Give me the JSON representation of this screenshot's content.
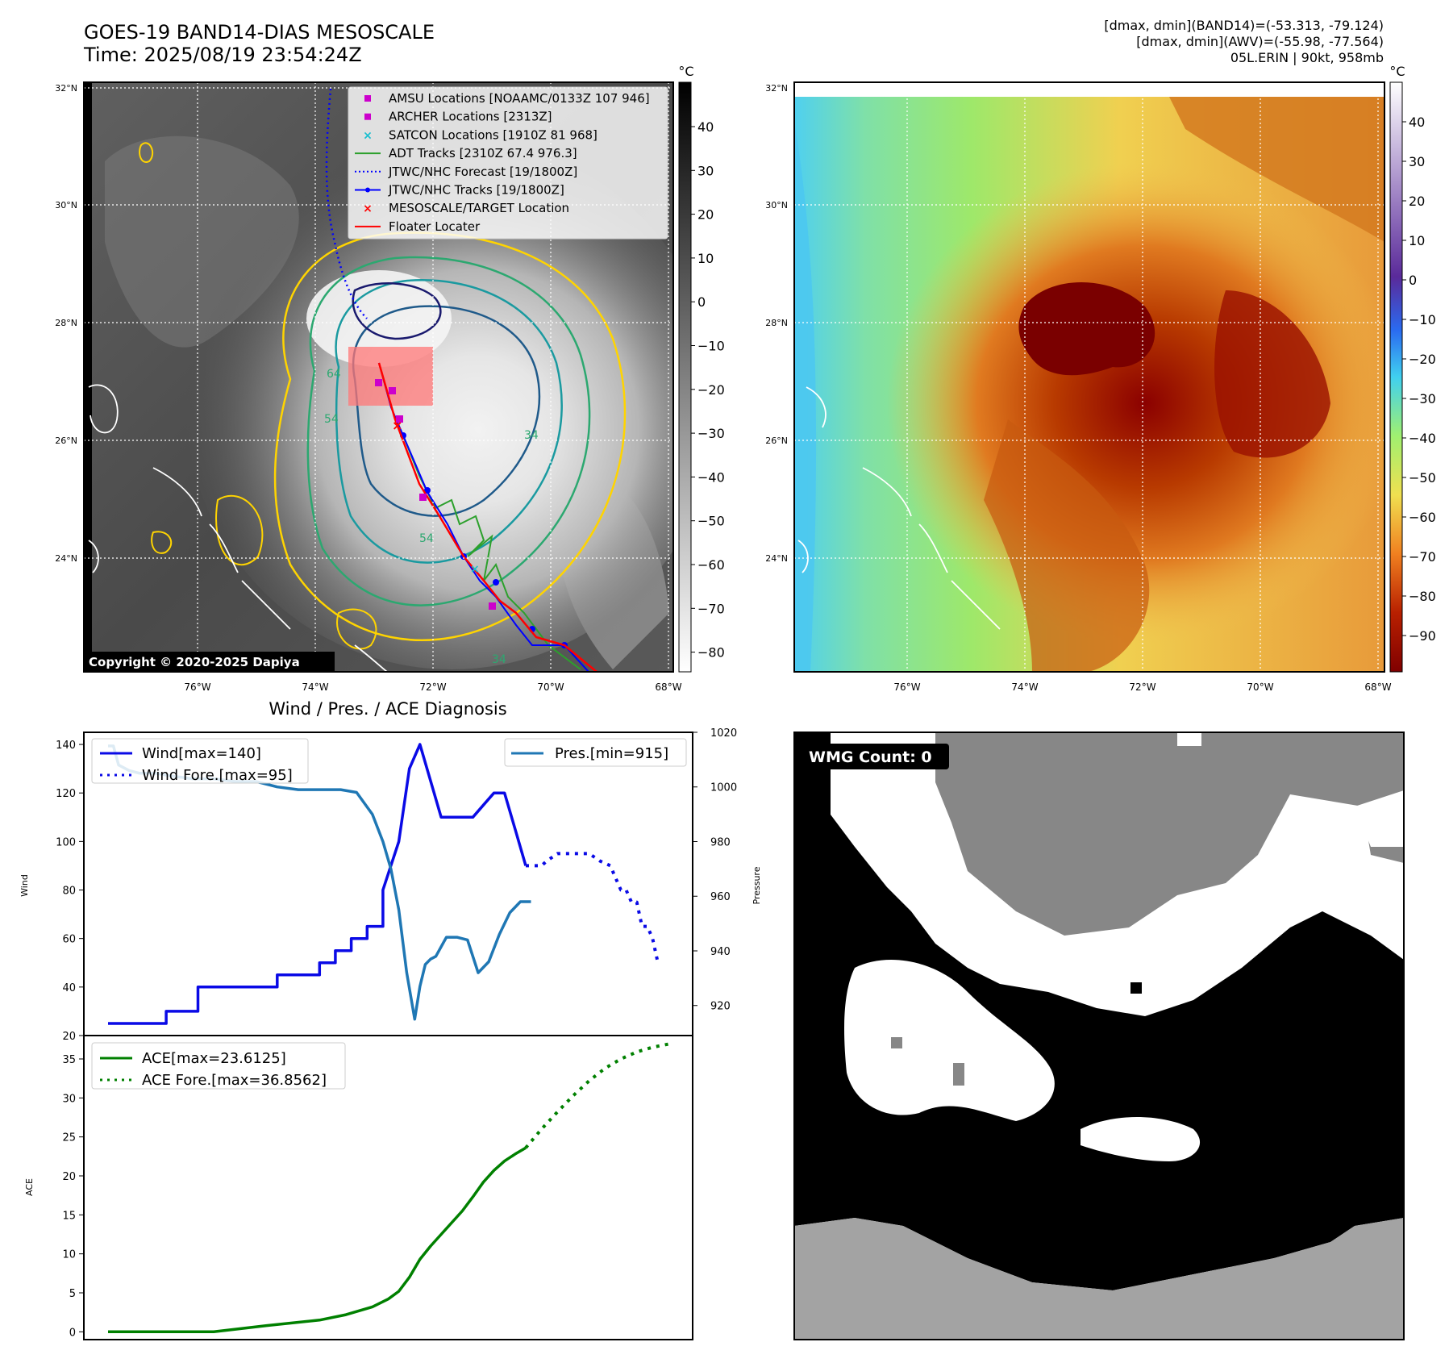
{
  "header": {
    "title_line1": "GOES-19 BAND14-DIAS MESOSCALE",
    "title_line2": "Time: 2025/08/19 23:54:24Z",
    "info_line1": "[dmax, dmin](BAND14)=(-53.313, -79.124)",
    "info_line2": "[dmax, dmin](AWV)=(-55.98, -77.564)",
    "info_line3": "05L.ERIN | 90kt, 958mb"
  },
  "colors": {
    "wind": "#0a0ae6",
    "pressure": "#1f77b4",
    "ace": "#008000",
    "track_red": "#ff0000",
    "jtwc_blue": "#0000ff",
    "adt_green": "#2ca02c",
    "magenta": "#cc00cc",
    "satcon_cyan": "#17becf",
    "wmg_gray_top": "#878787",
    "wmg_gray_bottom": "#a3a3a3"
  },
  "map_ir": {
    "lat_labels": [
      "32°N",
      "30°N",
      "28°N",
      "26°N",
      "24°N"
    ],
    "lon_labels": [
      "76°W",
      "74°W",
      "72°W",
      "70°W",
      "68°W"
    ],
    "colorbar_unit": "°C",
    "colorbar_ticks": [
      "40",
      "30",
      "20",
      "10",
      "0",
      "−10",
      "−20",
      "−30",
      "−40",
      "−50",
      "−60",
      "−70",
      "−80"
    ],
    "copyright": "Copyright © 2020-2025 Dapiya",
    "contour_labels": [
      "64",
      "54",
      "34",
      "54",
      "34"
    ],
    "legend": [
      {
        "label": "AMSU Locations [NOAAMC/0133Z 107 946]",
        "marker": "square",
        "color": "#cc00cc"
      },
      {
        "label": "ARCHER Locations [2313Z]",
        "marker": "square",
        "color": "#cc00cc"
      },
      {
        "label": "SATCON Locations [1910Z 81 968]",
        "marker": "x",
        "color": "#17becf"
      },
      {
        "label": "ADT Tracks [2310Z 67.4 976.3]",
        "marker": "line",
        "color": "#2ca02c"
      },
      {
        "label": "JTWC/NHC Forecast [19/1800Z]",
        "marker": "dotted",
        "color": "#0000ff"
      },
      {
        "label": "JTWC/NHC Tracks [19/1800Z]",
        "marker": "line-dot",
        "color": "#0000ff"
      },
      {
        "label": "MESOSCALE/TARGET Location",
        "marker": "x",
        "color": "#ff0000"
      },
      {
        "label": "Floater Locater",
        "marker": "line",
        "color": "#ff0000"
      }
    ]
  },
  "map_wv": {
    "lat_labels": [
      "32°N",
      "30°N",
      "28°N",
      "26°N",
      "24°N"
    ],
    "lon_labels": [
      "76°W",
      "74°W",
      "72°W",
      "70°W",
      "68°W"
    ],
    "colorbar_unit": "°C",
    "colorbar_ticks": [
      "40",
      "30",
      "20",
      "10",
      "0",
      "−10",
      "−20",
      "−30",
      "−40",
      "−50",
      "−60",
      "−70",
      "−80",
      "−90"
    ]
  },
  "wmg": {
    "badge": "WMG Count: 0"
  },
  "chart_data": [
    {
      "type": "line",
      "title": "Wind / Pres. / ACE Diagnosis",
      "ylabel": "Wind",
      "y2label": "Pressure",
      "ylim": [
        20,
        145
      ],
      "y2lim": [
        909,
        1020
      ],
      "yticks": [
        "20",
        "40",
        "60",
        "80",
        "100",
        "120",
        "140"
      ],
      "y2ticks": [
        "920",
        "940",
        "960",
        "980",
        "1000",
        "1020"
      ],
      "legend_left": [
        "Wind[max=140]",
        "Wind Fore.[max=95]"
      ],
      "legend_right": [
        "Pres.[min=915]"
      ],
      "series": [
        {
          "name": "Wind[max=140]",
          "axis": "left",
          "style": "solid",
          "color": "#0a0ae6",
          "x": [
            0,
            11,
            11,
            17,
            17,
            32,
            32,
            40,
            40,
            43,
            43,
            46,
            46,
            49,
            49,
            52,
            52,
            55,
            57,
            59,
            61,
            63,
            65,
            67,
            69,
            71,
            73,
            75,
            77,
            79
          ],
          "values": [
            25,
            25,
            30,
            30,
            40,
            40,
            45,
            45,
            50,
            50,
            55,
            55,
            60,
            60,
            65,
            65,
            80,
            100,
            130,
            140,
            125,
            110,
            110,
            110,
            110,
            115,
            120,
            120,
            105,
            90
          ]
        },
        {
          "name": "Wind Fore.[max=95]",
          "axis": "left",
          "style": "dotted",
          "color": "#0a0ae6",
          "x": [
            79,
            82,
            83,
            85,
            87,
            89,
            91,
            93,
            95,
            96,
            97,
            98,
            99,
            100,
            101,
            102,
            103,
            104
          ],
          "values": [
            90,
            90,
            92,
            95,
            95,
            95,
            95,
            92,
            90,
            85,
            80,
            80,
            75,
            75,
            65,
            65,
            60,
            50
          ]
        },
        {
          "name": "Pres.[min=915]",
          "axis": "right",
          "style": "solid",
          "color": "#1f77b4",
          "x": [
            0,
            1,
            2,
            4,
            6,
            9,
            12,
            16,
            20,
            24,
            28,
            32,
            36,
            40,
            44,
            47,
            50,
            52,
            53.5,
            55,
            56.5,
            58,
            59,
            60,
            61,
            62,
            64,
            66,
            68,
            70,
            72,
            74,
            76,
            78,
            80
          ],
          "values": [
            1015,
            1015,
            1008,
            1006,
            1005,
            1005,
            1004,
            1003,
            1003,
            1002,
            1002,
            1000,
            999,
            999,
            999,
            998,
            990,
            980,
            970,
            955,
            932,
            915,
            927,
            935,
            937,
            938,
            945,
            945,
            944,
            932,
            936,
            946,
            954,
            958,
            958
          ]
        }
      ]
    },
    {
      "type": "line",
      "title": "",
      "ylabel": "ACE",
      "ylim": [
        -1,
        38
      ],
      "yticks": [
        "0",
        "5",
        "10",
        "15",
        "20",
        "25",
        "30",
        "35"
      ],
      "legend": [
        "ACE[max=23.6125]",
        "ACE Fore.[max=36.8562]"
      ],
      "series": [
        {
          "name": "ACE[max=23.6125]",
          "style": "solid",
          "color": "#008000",
          "x": [
            0,
            10,
            20,
            30,
            40,
            45,
            50,
            53,
            55,
            57,
            59,
            61,
            63,
            65,
            67,
            69,
            71,
            73,
            75,
            77,
            79
          ],
          "values": [
            0,
            0,
            0,
            0.8,
            1.5,
            2.2,
            3.2,
            4.2,
            5.2,
            7,
            9.3,
            11,
            12.5,
            14,
            15.5,
            17.3,
            19.2,
            20.7,
            21.9,
            22.8,
            23.6
          ]
        },
        {
          "name": "ACE Fore.[max=36.8562]",
          "style": "dotted",
          "color": "#008000",
          "x": [
            79,
            82,
            85,
            88,
            91,
            94,
            97,
            100,
            103,
            106
          ],
          "values": [
            23.6,
            26,
            28.2,
            30.3,
            32.2,
            33.8,
            35,
            35.9,
            36.5,
            36.9
          ]
        }
      ]
    }
  ]
}
